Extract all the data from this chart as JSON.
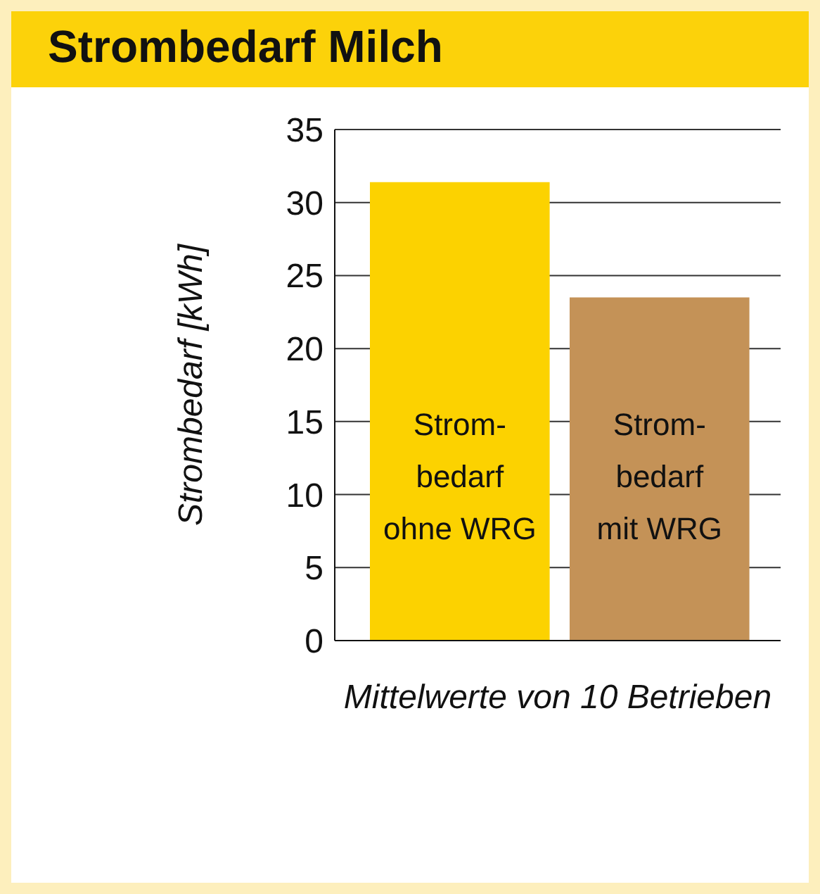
{
  "chart_data": {
    "type": "bar",
    "title": "Strombedarf Milch",
    "xlabel": "Mittelwerte von 10 Betrieben",
    "ylabel": "Strombedarf [kWh]",
    "categories": [
      "Strom-\nbedarf\nohne WRG",
      "Strom-\nbedarf\nmit WRG"
    ],
    "values": [
      31.4,
      23.5
    ],
    "colors": [
      "#fcd200",
      "#c49257"
    ],
    "ylim": [
      0,
      35
    ],
    "yticks": [
      0,
      5,
      10,
      15,
      20,
      25,
      30,
      35
    ],
    "grid": "y",
    "legend": false
  }
}
